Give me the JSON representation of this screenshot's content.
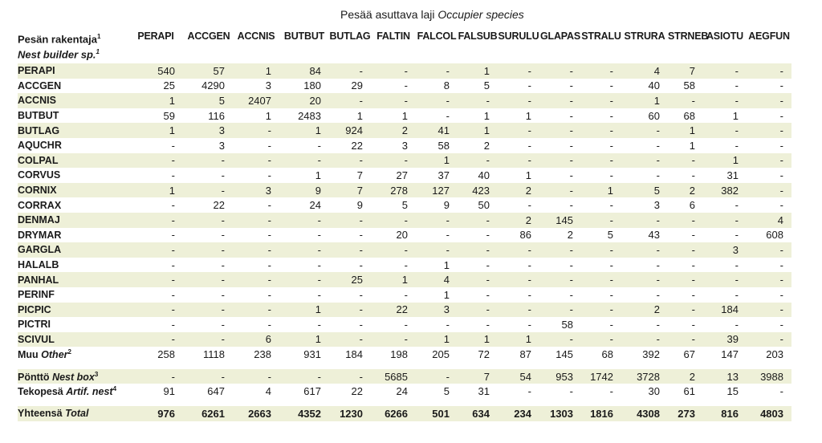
{
  "header": {
    "occupier_title": "Pesää asuttava laji",
    "occupier_title_en": "Occupier species",
    "builder_title": "Pesän rakentaja",
    "builder_title_note": "1",
    "builder_title_en": "Nest builder sp.",
    "builder_title_en_note": "1"
  },
  "columns": [
    "PERAPI",
    "ACCGEN",
    "ACCNIS",
    "BUTBUT",
    "BUTLAG",
    "FALTIN",
    "FALCOL",
    "FALSUB",
    "SURULU",
    "GLAPAS",
    "STRALU",
    "STRURA",
    "STRNEB",
    "ASIOTU",
    "AEGFUN"
  ],
  "rows": [
    {
      "label": "PERAPI",
      "cells": [
        "540",
        "57",
        "1",
        "84",
        "-",
        "-",
        "-",
        "1",
        "-",
        "-",
        "-",
        "4",
        "7",
        "-",
        "-"
      ]
    },
    {
      "label": "ACCGEN",
      "cells": [
        "25",
        "4290",
        "3",
        "180",
        "29",
        "-",
        "8",
        "5",
        "-",
        "-",
        "-",
        "40",
        "58",
        "-",
        "-"
      ]
    },
    {
      "label": "ACCNIS",
      "cells": [
        "1",
        "5",
        "2407",
        "20",
        "-",
        "-",
        "-",
        "-",
        "-",
        "-",
        "-",
        "1",
        "-",
        "-",
        "-"
      ]
    },
    {
      "label": "BUTBUT",
      "cells": [
        "59",
        "116",
        "1",
        "2483",
        "1",
        "1",
        "-",
        "1",
        "1",
        "-",
        "-",
        "60",
        "68",
        "1",
        "-"
      ]
    },
    {
      "label": "BUTLAG",
      "cells": [
        "1",
        "3",
        "-",
        "1",
        "924",
        "2",
        "41",
        "1",
        "-",
        "-",
        "-",
        "-",
        "1",
        "-",
        "-"
      ]
    },
    {
      "label": "AQUCHR",
      "cells": [
        "-",
        "3",
        "-",
        "-",
        "22",
        "3",
        "58",
        "2",
        "-",
        "-",
        "-",
        "-",
        "1",
        "-",
        "-"
      ]
    },
    {
      "label": "COLPAL",
      "cells": [
        "-",
        "-",
        "-",
        "-",
        "-",
        "-",
        "1",
        "-",
        "-",
        "-",
        "-",
        "-",
        "-",
        "1",
        "-"
      ]
    },
    {
      "label": "CORVUS",
      "cells": [
        "-",
        "-",
        "-",
        "1",
        "7",
        "27",
        "37",
        "40",
        "1",
        "-",
        "-",
        "-",
        "-",
        "31",
        "-"
      ]
    },
    {
      "label": "CORNIX",
      "cells": [
        "1",
        "-",
        "3",
        "9",
        "7",
        "278",
        "127",
        "423",
        "2",
        "-",
        "1",
        "5",
        "2",
        "382",
        "-"
      ]
    },
    {
      "label": "CORRAX",
      "cells": [
        "-",
        "22",
        "-",
        "24",
        "9",
        "5",
        "9",
        "50",
        "-",
        "-",
        "-",
        "3",
        "6",
        "-",
        "-"
      ]
    },
    {
      "label": "DENMAJ",
      "cells": [
        "-",
        "-",
        "-",
        "-",
        "-",
        "-",
        "-",
        "-",
        "2",
        "145",
        "-",
        "-",
        "-",
        "-",
        "4"
      ]
    },
    {
      "label": "DRYMAR",
      "cells": [
        "-",
        "-",
        "-",
        "-",
        "-",
        "20",
        "-",
        "-",
        "86",
        "2",
        "5",
        "43",
        "-",
        "-",
        "608"
      ]
    },
    {
      "label": "GARGLA",
      "cells": [
        "-",
        "-",
        "-",
        "-",
        "-",
        "-",
        "-",
        "-",
        "-",
        "-",
        "-",
        "-",
        "-",
        "3",
        "-"
      ]
    },
    {
      "label": "HALALB",
      "cells": [
        "-",
        "-",
        "-",
        "-",
        "-",
        "-",
        "1",
        "-",
        "-",
        "-",
        "-",
        "-",
        "-",
        "-",
        "-"
      ]
    },
    {
      "label": "PANHAL",
      "cells": [
        "-",
        "-",
        "-",
        "-",
        "25",
        "1",
        "4",
        "-",
        "-",
        "-",
        "-",
        "-",
        "-",
        "-",
        "-"
      ]
    },
    {
      "label": "PERINF",
      "cells": [
        "-",
        "-",
        "-",
        "-",
        "-",
        "-",
        "1",
        "-",
        "-",
        "-",
        "-",
        "-",
        "-",
        "-",
        "-"
      ]
    },
    {
      "label": "PICPIC",
      "cells": [
        "-",
        "-",
        "-",
        "1",
        "-",
        "22",
        "3",
        "-",
        "-",
        "-",
        "-",
        "2",
        "-",
        "184",
        "-"
      ]
    },
    {
      "label": "PICTRI",
      "cells": [
        "-",
        "-",
        "-",
        "-",
        "-",
        "-",
        "-",
        "-",
        "-",
        "58",
        "-",
        "-",
        "-",
        "-",
        "-"
      ]
    },
    {
      "label": "SCIVUL",
      "cells": [
        "-",
        "-",
        "6",
        "1",
        "-",
        "-",
        "1",
        "1",
        "1",
        "-",
        "-",
        "-",
        "-",
        "39",
        "-"
      ]
    },
    {
      "label": "Muu",
      "label_en": "Other",
      "note": "2",
      "cells": [
        "258",
        "1118",
        "238",
        "931",
        "184",
        "198",
        "205",
        "72",
        "87",
        "145",
        "68",
        "392",
        "67",
        "147",
        "203"
      ]
    }
  ],
  "extra_rows": [
    {
      "label": "Pönttö",
      "label_en": "Nest box",
      "note": "3",
      "cells": [
        "-",
        "-",
        "-",
        "-",
        "-",
        "5685",
        "-",
        "7",
        "54",
        "953",
        "1742",
        "3728",
        "2",
        "13",
        "3988"
      ]
    },
    {
      "label": "Tekopesä",
      "label_en": "Artif. nest",
      "note": "4",
      "cells": [
        "91",
        "647",
        "4",
        "617",
        "22",
        "24",
        "5",
        "31",
        "-",
        "-",
        "-",
        "30",
        "61",
        "15",
        "-"
      ]
    }
  ],
  "total_row": {
    "label": "Yhteensä",
    "label_en": "Total",
    "cells": [
      "976",
      "6261",
      "2663",
      "4352",
      "1230",
      "6266",
      "501",
      "634",
      "234",
      "1303",
      "1816",
      "4308",
      "273",
      "816",
      "4803"
    ]
  }
}
